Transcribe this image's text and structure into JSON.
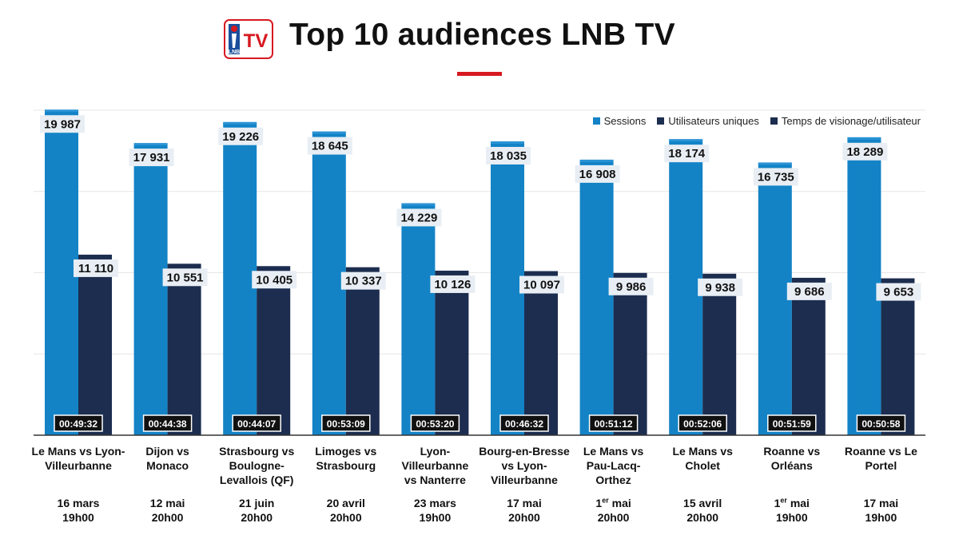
{
  "header": {
    "title": "Top 10 audiences LNB TV",
    "logo_text": "LNB",
    "logo_tv": "TV",
    "accent_color": "#d71920"
  },
  "colors": {
    "sessions": "#1383c6",
    "users": "#1c2d4f",
    "sessions_cap": "#2a93d5",
    "grid": "#e6e6e6"
  },
  "chart_data": {
    "type": "bar",
    "title": "Top 10 audiences LNB TV",
    "legend_position": "top-right",
    "grid": true,
    "ylim": [
      0,
      20000
    ],
    "categories": [
      "Le Mans vs Lyon-Villeurbanne",
      "Dijon vs Monaco",
      "Strasbourg vs Boulogne-Levallois (QF)",
      "Limoges vs Strasbourg",
      "Lyon-Villeurbanne vs Nanterre",
      "Bourg-en-Bresse vs Lyon-Villeurbanne",
      "Le Mans vs Pau-Lacq-Orthez",
      "Le Mans vs Cholet",
      "Roanne vs Orléans",
      "Roanne vs Le Portel"
    ],
    "category_lines": [
      [
        "Le Mans vs Lyon-",
        "Villeurbanne"
      ],
      [
        "Dijon vs",
        "Monaco"
      ],
      [
        "Strasbourg vs",
        "Boulogne-",
        "Levallois (QF)"
      ],
      [
        "Limoges vs",
        "Strasbourg"
      ],
      [
        "Lyon-",
        "Villeurbanne",
        "vs Nanterre"
      ],
      [
        "Bourg-en-Bresse",
        "vs Lyon-",
        "Villeurbanne"
      ],
      [
        "Le Mans vs",
        "Pau-Lacq-",
        "Orthez"
      ],
      [
        "Le Mans vs",
        "Cholet"
      ],
      [
        "Roanne vs",
        "Orléans"
      ],
      [
        "Roanne vs Le",
        "Portel"
      ]
    ],
    "dates": [
      {
        "day": "16",
        "sup": "",
        "month": "mars",
        "time": "19h00"
      },
      {
        "day": "12",
        "sup": "",
        "month": "mai",
        "time": "20h00"
      },
      {
        "day": "21",
        "sup": "",
        "month": "juin",
        "time": "20h00"
      },
      {
        "day": "20",
        "sup": "",
        "month": "avril",
        "time": "20h00"
      },
      {
        "day": "23",
        "sup": "",
        "month": "mars",
        "time": "19h00"
      },
      {
        "day": "17",
        "sup": "",
        "month": "mai",
        "time": "20h00"
      },
      {
        "day": "1",
        "sup": "er",
        "month": "mai",
        "time": "20h00"
      },
      {
        "day": "15",
        "sup": "",
        "month": "avril",
        "time": "20h00"
      },
      {
        "day": "1",
        "sup": "er",
        "month": "mai",
        "time": "19h00"
      },
      {
        "day": "17",
        "sup": "",
        "month": "mai",
        "time": "19h00"
      }
    ],
    "series": [
      {
        "name": "Sessions",
        "values": [
          19987,
          17931,
          19226,
          18645,
          14229,
          18035,
          16908,
          18174,
          16735,
          18289
        ],
        "labels": [
          "19 987",
          "17 931",
          "19 226",
          "18 645",
          "14 229",
          "18 035",
          "16 908",
          "18 174",
          "16 735",
          "18 289"
        ]
      },
      {
        "name": "Utilisateurs uniques",
        "values": [
          11110,
          10551,
          10405,
          10337,
          10126,
          10097,
          9986,
          9938,
          9686,
          9653
        ],
        "labels": [
          "11 110",
          "10 551",
          "10 405",
          "10 337",
          "10 126",
          "10 097",
          "9 986",
          "9 938",
          "9 686",
          "9 653"
        ]
      },
      {
        "name": "Temps de visionage/utilisateur",
        "values": [
          "00:49:32",
          "00:44:38",
          "00:44:07",
          "00:53:09",
          "00:53:20",
          "00:46:32",
          "00:51:12",
          "00:52:06",
          "00:51:59",
          "00:50:58"
        ]
      }
    ]
  }
}
